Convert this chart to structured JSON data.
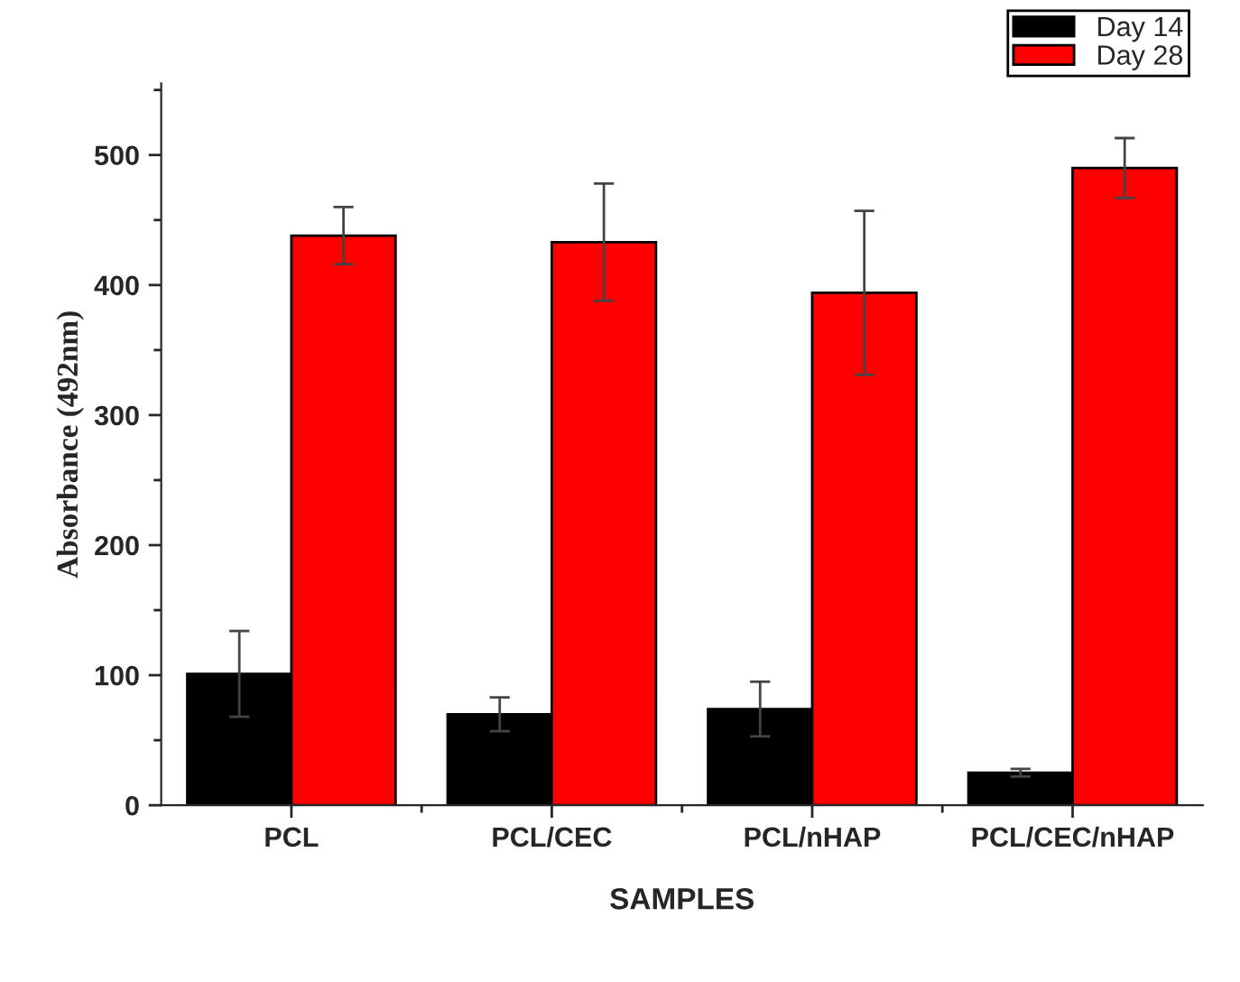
{
  "chart_data": {
    "type": "bar",
    "xlabel": "SAMPLES",
    "ylabel": "Absorbance (492nm)",
    "categories": [
      "PCL",
      "PCL/CEC",
      "PCL/nHAP",
      "PCL/CEC/nHAP"
    ],
    "series": [
      {
        "name": "Day 14",
        "color": "#000000",
        "values": [
          101,
          70,
          74,
          25
        ],
        "errors": [
          33,
          13,
          21,
          3
        ]
      },
      {
        "name": "Day 28",
        "color": "#ff0000",
        "values": [
          438,
          433,
          394,
          490
        ],
        "errors": [
          22,
          45,
          63,
          23
        ]
      }
    ],
    "ylim": [
      0,
      555
    ],
    "yticks": [
      0,
      100,
      200,
      300,
      400,
      500
    ],
    "grid": false,
    "legend": "top right"
  }
}
